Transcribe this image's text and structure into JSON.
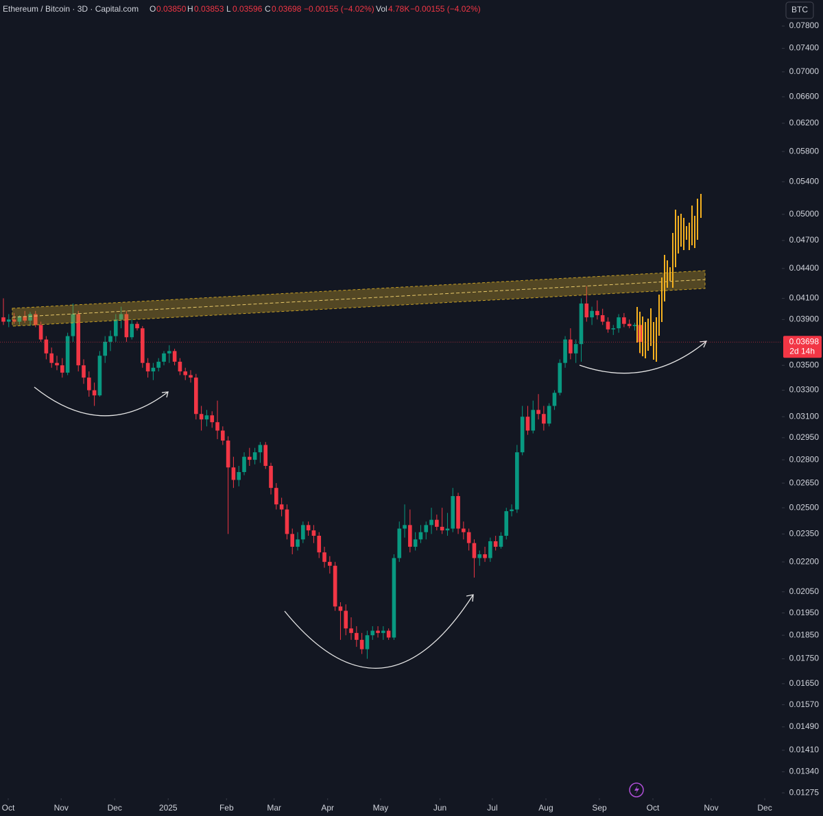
{
  "chart_data": {
    "type": "candlestick",
    "log_scale": true,
    "grid": false,
    "header": {
      "title": "Ethereum / Bitcoin · 3D · Capital.com",
      "o": "O",
      "open": "0.03850",
      "h": "H",
      "high": "0.03853",
      "l": "L",
      "low": "0.03596",
      "c": "C",
      "close": "0.03698",
      "change": "−0.00155 (−4.02%)",
      "vol": "Vol",
      "volume": "4.78K",
      "vol_change": "−0.00155 (−4.02%)"
    },
    "currency": "BTC",
    "up_color": "#089981",
    "down_color": "#f23645",
    "last_price": 0.03698,
    "countdown": "2d 14h",
    "xlim": [
      -0.64,
      145.5
    ],
    "xticks": [
      {
        "value": 0.9,
        "label": "Oct"
      },
      {
        "value": 10.8,
        "label": "Nov"
      },
      {
        "value": 20.8,
        "label": "Dec"
      },
      {
        "value": 30.8,
        "label": "2025"
      },
      {
        "value": 41.7,
        "label": "Feb"
      },
      {
        "value": 50.6,
        "label": "Mar"
      },
      {
        "value": 60.6,
        "label": "Apr"
      },
      {
        "value": 70.5,
        "label": "May"
      },
      {
        "value": 81.6,
        "label": "Jun"
      },
      {
        "value": 91.4,
        "label": "Jul"
      },
      {
        "value": 101.4,
        "label": "Aug"
      },
      {
        "value": 111.4,
        "label": "Sep"
      },
      {
        "value": 121.4,
        "label": "Oct"
      },
      {
        "value": 132.3,
        "label": "Nov"
      },
      {
        "value": 142.3,
        "label": "Dec"
      }
    ],
    "ylim": [
      0.01259,
      0.08295
    ],
    "yticks": [
      {
        "value": 0.078,
        "label": "0.07800"
      },
      {
        "value": 0.074,
        "label": "0.07400"
      },
      {
        "value": 0.07,
        "label": "0.07000"
      },
      {
        "value": 0.066,
        "label": "0.06600"
      },
      {
        "value": 0.062,
        "label": "0.06200"
      },
      {
        "value": 0.058,
        "label": "0.05800"
      },
      {
        "value": 0.054,
        "label": "0.05400"
      },
      {
        "value": 0.05,
        "label": "0.05000"
      },
      {
        "value": 0.047,
        "label": "0.04700"
      },
      {
        "value": 0.044,
        "label": "0.04400"
      },
      {
        "value": 0.041,
        "label": "0.04100"
      },
      {
        "value": 0.039,
        "label": "0.03900"
      },
      {
        "value": 0.035,
        "label": "0.03500"
      },
      {
        "value": 0.033,
        "label": "0.03300"
      },
      {
        "value": 0.031,
        "label": "0.03100"
      },
      {
        "value": 0.0295,
        "label": "0.02950"
      },
      {
        "value": 0.028,
        "label": "0.02800"
      },
      {
        "value": 0.0265,
        "label": "0.02650"
      },
      {
        "value": 0.025,
        "label": "0.02500"
      },
      {
        "value": 0.0235,
        "label": "0.02350"
      },
      {
        "value": 0.022,
        "label": "0.02200"
      },
      {
        "value": 0.0205,
        "label": "0.02050"
      },
      {
        "value": 0.0195,
        "label": "0.01950"
      },
      {
        "value": 0.0185,
        "label": "0.01850"
      },
      {
        "value": 0.0175,
        "label": "0.01750"
      },
      {
        "value": 0.0165,
        "label": "0.01650"
      },
      {
        "value": 0.0157,
        "label": "0.01570"
      },
      {
        "value": 0.0149,
        "label": "0.01490"
      },
      {
        "value": 0.0141,
        "label": "0.01410"
      },
      {
        "value": 0.0134,
        "label": "0.01340"
      },
      {
        "value": 0.01275,
        "label": "0.01275"
      }
    ],
    "ohlc": [
      [
        0.0392,
        0.041,
        0.0385,
        0.0388
      ],
      [
        0.0388,
        0.0395,
        0.0383,
        0.039
      ],
      [
        0.039,
        0.0396,
        0.0386,
        0.0388
      ],
      [
        0.0388,
        0.0394,
        0.0385,
        0.0393
      ],
      [
        0.0393,
        0.0398,
        0.0387,
        0.0389
      ],
      [
        0.0389,
        0.0397,
        0.0384,
        0.0395
      ],
      [
        0.0395,
        0.0398,
        0.0383,
        0.0385
      ],
      [
        0.0385,
        0.0388,
        0.037,
        0.0372
      ],
      [
        0.0372,
        0.0375,
        0.0355,
        0.036
      ],
      [
        0.036,
        0.0365,
        0.0348,
        0.0352
      ],
      [
        0.0352,
        0.0358,
        0.0346,
        0.035
      ],
      [
        0.035,
        0.0356,
        0.034,
        0.0344
      ],
      [
        0.0344,
        0.0378,
        0.0342,
        0.0375
      ],
      [
        0.0375,
        0.0405,
        0.037,
        0.0395
      ],
      [
        0.0395,
        0.0398,
        0.0345,
        0.035
      ],
      [
        0.035,
        0.0355,
        0.0335,
        0.034
      ],
      [
        0.034,
        0.0345,
        0.0325,
        0.033
      ],
      [
        0.033,
        0.0336,
        0.0318,
        0.0326
      ],
      [
        0.0326,
        0.0362,
        0.0325,
        0.0358
      ],
      [
        0.0358,
        0.0375,
        0.0352,
        0.037
      ],
      [
        0.037,
        0.038,
        0.0362,
        0.0375
      ],
      [
        0.0375,
        0.0395,
        0.037,
        0.039
      ],
      [
        0.039,
        0.0402,
        0.0382,
        0.0395
      ],
      [
        0.0395,
        0.0398,
        0.037,
        0.0374
      ],
      [
        0.0374,
        0.039,
        0.0372,
        0.0386
      ],
      [
        0.0386,
        0.0388,
        0.038,
        0.0382
      ],
      [
        0.0382,
        0.0384,
        0.0348,
        0.0352
      ],
      [
        0.0352,
        0.0356,
        0.034,
        0.0345
      ],
      [
        0.0345,
        0.0352,
        0.0338,
        0.0348
      ],
      [
        0.0348,
        0.0356,
        0.0345,
        0.0353
      ],
      [
        0.0353,
        0.0362,
        0.035,
        0.036
      ],
      [
        0.036,
        0.0367,
        0.0352,
        0.0362
      ],
      [
        0.0362,
        0.0364,
        0.035,
        0.0353
      ],
      [
        0.0353,
        0.0356,
        0.0342,
        0.0345
      ],
      [
        0.0345,
        0.0348,
        0.0338,
        0.0342
      ],
      [
        0.0342,
        0.0346,
        0.0336,
        0.034
      ],
      [
        0.034,
        0.0343,
        0.0308,
        0.0312
      ],
      [
        0.0312,
        0.0318,
        0.03,
        0.0308
      ],
      [
        0.0308,
        0.0315,
        0.0303,
        0.0311
      ],
      [
        0.0311,
        0.0314,
        0.0302,
        0.0306
      ],
      [
        0.0306,
        0.0322,
        0.0294,
        0.03
      ],
      [
        0.03,
        0.0303,
        0.029,
        0.0293
      ],
      [
        0.0293,
        0.0296,
        0.0235,
        0.0275
      ],
      [
        0.0275,
        0.0282,
        0.0262,
        0.0267
      ],
      [
        0.0267,
        0.0276,
        0.0263,
        0.0272
      ],
      [
        0.0272,
        0.0285,
        0.027,
        0.0282
      ],
      [
        0.0282,
        0.0288,
        0.0276,
        0.028
      ],
      [
        0.028,
        0.0288,
        0.0277,
        0.0285
      ],
      [
        0.0285,
        0.0292,
        0.0278,
        0.029
      ],
      [
        0.029,
        0.0292,
        0.0274,
        0.0276
      ],
      [
        0.0276,
        0.0278,
        0.0258,
        0.0262
      ],
      [
        0.0262,
        0.0265,
        0.0249,
        0.0252
      ],
      [
        0.0252,
        0.0256,
        0.0245,
        0.0249
      ],
      [
        0.0249,
        0.0252,
        0.0232,
        0.0235
      ],
      [
        0.0235,
        0.0238,
        0.0224,
        0.0228
      ],
      [
        0.0228,
        0.0236,
        0.0226,
        0.0232
      ],
      [
        0.0232,
        0.0242,
        0.023,
        0.024
      ],
      [
        0.024,
        0.0242,
        0.0234,
        0.0237
      ],
      [
        0.0237,
        0.024,
        0.023,
        0.0234
      ],
      [
        0.0234,
        0.0236,
        0.0222,
        0.0225
      ],
      [
        0.0225,
        0.0228,
        0.0217,
        0.022
      ],
      [
        0.022,
        0.0223,
        0.0214,
        0.0218
      ],
      [
        0.0218,
        0.022,
        0.0196,
        0.0198
      ],
      [
        0.0198,
        0.02,
        0.0183,
        0.0196
      ],
      [
        0.0196,
        0.0199,
        0.0185,
        0.0188
      ],
      [
        0.0188,
        0.0193,
        0.0183,
        0.0186
      ],
      [
        0.0186,
        0.0189,
        0.018,
        0.0183
      ],
      [
        0.0183,
        0.0186,
        0.0177,
        0.0179
      ],
      [
        0.0179,
        0.0187,
        0.0175,
        0.0185
      ],
      [
        0.0185,
        0.0189,
        0.0183,
        0.0187
      ],
      [
        0.0187,
        0.0189,
        0.0184,
        0.0186
      ],
      [
        0.0186,
        0.0189,
        0.0183,
        0.0187
      ],
      [
        0.0187,
        0.0188,
        0.0183,
        0.0184
      ],
      [
        0.0184,
        0.0224,
        0.0183,
        0.0222
      ],
      [
        0.0222,
        0.0242,
        0.022,
        0.0238
      ],
      [
        0.0238,
        0.0252,
        0.0233,
        0.024
      ],
      [
        0.024,
        0.0249,
        0.0225,
        0.0228
      ],
      [
        0.0228,
        0.0236,
        0.0226,
        0.0232
      ],
      [
        0.0232,
        0.024,
        0.023,
        0.0236
      ],
      [
        0.0236,
        0.0242,
        0.0232,
        0.024
      ],
      [
        0.024,
        0.025,
        0.0235,
        0.0243
      ],
      [
        0.0243,
        0.0246,
        0.0237,
        0.0239
      ],
      [
        0.0239,
        0.025,
        0.0235,
        0.0237
      ],
      [
        0.0237,
        0.0247,
        0.0234,
        0.0238
      ],
      [
        0.0238,
        0.0262,
        0.0236,
        0.0257
      ],
      [
        0.0257,
        0.0259,
        0.0235,
        0.0238
      ],
      [
        0.0238,
        0.0242,
        0.0232,
        0.0236
      ],
      [
        0.0236,
        0.0238,
        0.0226,
        0.023
      ],
      [
        0.023,
        0.0232,
        0.0212,
        0.0222
      ],
      [
        0.0222,
        0.0226,
        0.0218,
        0.0224
      ],
      [
        0.0224,
        0.0228,
        0.022,
        0.0222
      ],
      [
        0.0222,
        0.0233,
        0.022,
        0.0231
      ],
      [
        0.0231,
        0.0234,
        0.0226,
        0.0228
      ],
      [
        0.0228,
        0.0236,
        0.0227,
        0.0234
      ],
      [
        0.0234,
        0.025,
        0.0232,
        0.0248
      ],
      [
        0.0248,
        0.0252,
        0.0245,
        0.0249
      ],
      [
        0.0249,
        0.029,
        0.0247,
        0.0285
      ],
      [
        0.0285,
        0.0318,
        0.0283,
        0.031
      ],
      [
        0.031,
        0.0318,
        0.0297,
        0.03
      ],
      [
        0.03,
        0.0322,
        0.0298,
        0.0315
      ],
      [
        0.0315,
        0.0327,
        0.0308,
        0.0312
      ],
      [
        0.0312,
        0.0318,
        0.03,
        0.0305
      ],
      [
        0.0305,
        0.032,
        0.0303,
        0.0318
      ],
      [
        0.0318,
        0.033,
        0.0315,
        0.0328
      ],
      [
        0.0328,
        0.0355,
        0.0326,
        0.0352
      ],
      [
        0.0352,
        0.0375,
        0.0348,
        0.0372
      ],
      [
        0.0372,
        0.0382,
        0.0355,
        0.036
      ],
      [
        0.036,
        0.0372,
        0.0352,
        0.0368
      ],
      [
        0.0368,
        0.041,
        0.0353,
        0.0405
      ],
      [
        0.0405,
        0.0422,
        0.0388,
        0.0392
      ],
      [
        0.0392,
        0.0402,
        0.0385,
        0.0398
      ],
      [
        0.0398,
        0.0408,
        0.039,
        0.0394
      ],
      [
        0.0394,
        0.04,
        0.0385,
        0.0388
      ],
      [
        0.0388,
        0.0392,
        0.0378,
        0.0381
      ],
      [
        0.0381,
        0.0385,
        0.0376,
        0.0382
      ],
      [
        0.0382,
        0.0395,
        0.0378,
        0.0392
      ],
      [
        0.0392,
        0.0396,
        0.0383,
        0.0386
      ],
      [
        0.0386,
        0.039,
        0.0382,
        0.0384
      ],
      [
        0.0384,
        0.0387,
        0.038,
        0.0385
      ],
      [
        0.0385,
        0.03853,
        0.03596,
        0.03698
      ]
    ]
  }
}
